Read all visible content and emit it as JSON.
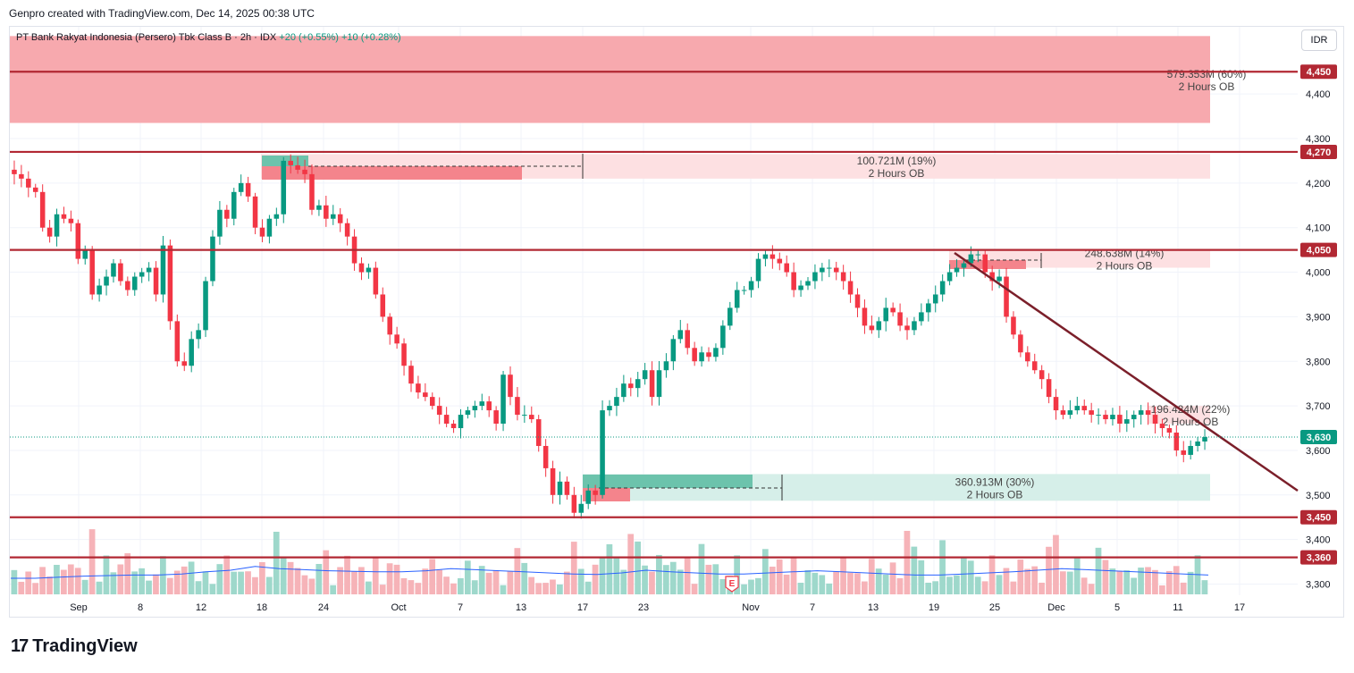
{
  "credit": "Genpro created with TradingView.com, Dec 14, 2025 00:38 UTC",
  "legend": {
    "symbol": "PT Bank Rakyat Indonesia (Persero) Tbk Class B · 2h · IDX",
    "change": "+20 (+0.55%)",
    "change2": "+10 (+0.28%)"
  },
  "currency_button": "IDR",
  "logo": {
    "mark": "17",
    "text": "TradingView"
  },
  "colors": {
    "up": "#089981",
    "down": "#f23645",
    "level_line": "#b22833",
    "supply_zone": "#f7a9ae",
    "supply_zone_light": "#fde0e2",
    "demand_zone": "#d6efe9",
    "trendline": "#7b1f2a",
    "volume_ma": "#2962ff"
  },
  "chart_data": {
    "type": "candlestick",
    "ylim": [
      3270,
      4530
    ],
    "y_ticks": [
      3300,
      3400,
      3500,
      3600,
      3700,
      3800,
      3900,
      4000,
      4100,
      4200,
      4300,
      4400
    ],
    "x_ticks": [
      "Sep",
      "8",
      "12",
      "18",
      "24",
      "Oct",
      "7",
      "13",
      "17",
      "23",
      "Nov",
      "7",
      "13",
      "19",
      "25",
      "Dec",
      "5",
      "11",
      "17"
    ],
    "last_price": {
      "label": "3,630",
      "value": 3630
    },
    "levels": [
      {
        "label": "4,450",
        "value": 4450
      },
      {
        "label": "4,270",
        "value": 4270
      },
      {
        "label": "4,050",
        "value": 4050
      },
      {
        "label": "3,450",
        "value": 3450
      },
      {
        "label": "3,360",
        "value": 3360
      }
    ],
    "order_blocks": [
      {
        "label": "579.353M (60%)",
        "sublabel": "2 Hours OB",
        "top": 4530,
        "bottom": 4335,
        "kind": "supply"
      },
      {
        "label": "100.721M (19%)",
        "sublabel": "2 Hours OB",
        "top": 4265,
        "bottom": 4210,
        "kind": "supply"
      },
      {
        "label": "248.638M (14%)",
        "sublabel": "2 Hours OB",
        "top": 4050,
        "bottom": 4010,
        "kind": "supply"
      },
      {
        "label": "196.424M (22%)",
        "sublabel": "2 Hours OB",
        "top": 3700,
        "bottom": 3660,
        "kind": "supply"
      },
      {
        "label": "360.913M (30%)",
        "sublabel": "2 Hours OB",
        "top": 3547,
        "bottom": 3487,
        "kind": "demand"
      }
    ],
    "trendline": {
      "from": [
        "Oct 21",
        4050
      ],
      "to": [
        "Dec 16",
        3510
      ]
    },
    "event_marker": "E",
    "closes": [
      4220,
      4210,
      4190,
      4180,
      4100,
      4080,
      4130,
      4120,
      4110,
      4030,
      4050,
      3950,
      3970,
      3990,
      4020,
      3980,
      3960,
      3990,
      4000,
      4010,
      3950,
      4060,
      3890,
      3800,
      3790,
      3850,
      3870,
      3980,
      4080,
      4140,
      4120,
      4180,
      4200,
      4170,
      4100,
      4080,
      4120,
      4130,
      4250,
      4240,
      4230,
      4220,
      4140,
      4150,
      4120,
      4130,
      4110,
      4080,
      4020,
      4000,
      4010,
      3950,
      3900,
      3860,
      3840,
      3790,
      3750,
      3730,
      3720,
      3700,
      3680,
      3660,
      3650,
      3680,
      3690,
      3700,
      3710,
      3690,
      3660,
      3770,
      3720,
      3680,
      3680,
      3670,
      3610,
      3560,
      3500,
      3530,
      3500,
      3460,
      3480,
      3510,
      3500,
      3690,
      3700,
      3720,
      3750,
      3740,
      3760,
      3780,
      3720,
      3780,
      3800,
      3850,
      3870,
      3830,
      3800,
      3820,
      3810,
      3830,
      3880,
      3920,
      3960,
      3960,
      3980,
      4030,
      4040,
      4030,
      4020,
      4000,
      3960,
      3970,
      3980,
      4000,
      4010,
      4010,
      4000,
      3980,
      3950,
      3920,
      3880,
      3870,
      3890,
      3920,
      3910,
      3880,
      3870,
      3890,
      3910,
      3930,
      3950,
      3980,
      4000,
      4010,
      4020,
      4040,
      4040,
      4000,
      3980,
      3990,
      3900,
      3860,
      3820,
      3800,
      3780,
      3760,
      3720,
      3690,
      3680,
      3690,
      3700,
      3690,
      3680,
      3680,
      3670,
      3680,
      3660,
      3670,
      3680,
      3690,
      3680,
      3660,
      3650,
      3640,
      3600,
      3590,
      3610,
      3620,
      3630
    ],
    "volume_ma": [
      0.3,
      0.3,
      0.32,
      0.34,
      0.35,
      0.36,
      0.36,
      0.38,
      0.42,
      0.45,
      0.52,
      0.48,
      0.46,
      0.44,
      0.43,
      0.42,
      0.42,
      0.44,
      0.48,
      0.46,
      0.44,
      0.42,
      0.4,
      0.38,
      0.37,
      0.4,
      0.45,
      0.42,
      0.4,
      0.38,
      0.38,
      0.4,
      0.42,
      0.44,
      0.42,
      0.4,
      0.38,
      0.36,
      0.36,
      0.38,
      0.4,
      0.42,
      0.45,
      0.48,
      0.46,
      0.44,
      0.42,
      0.4,
      0.38,
      0.36
    ]
  }
}
